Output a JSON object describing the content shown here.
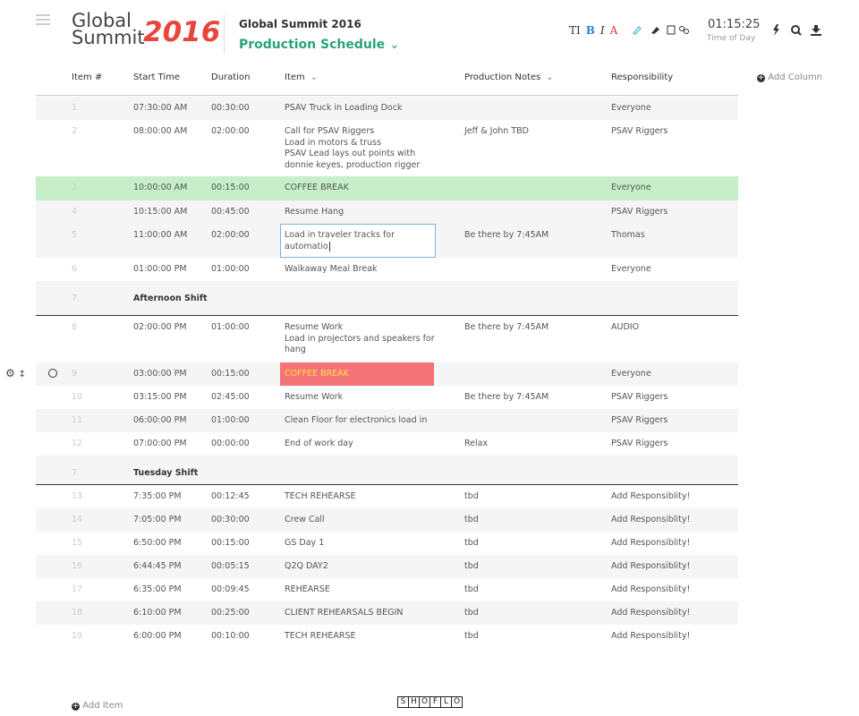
{
  "header": {
    "logo": {
      "line1": "Global",
      "line2": "Summit",
      "year": "2016"
    },
    "title": "Global Summit 2016",
    "subtitle": "Production Schedule",
    "toolbar": [
      "TI",
      "B",
      "I",
      "A"
    ],
    "time": "01:15:25",
    "time_label": "Time of Day"
  },
  "table": {
    "columns": [
      "Item #",
      "Start Time",
      "Duration",
      "Item",
      "Production Notes",
      "Responsibility"
    ],
    "add_column": "Add Column",
    "rows": [
      {
        "number": "1",
        "start": "07:30:00 AM",
        "duration": "00:30:00",
        "item": [
          "PSAV Truck in Loading Dock"
        ],
        "notes": "",
        "responsibility": "Everyone"
      },
      {
        "number": "2",
        "start": "08:00:00 AM",
        "duration": "02:00:00",
        "item": [
          "Call for PSAV Riggers",
          "Load in motors & truss",
          "PSAV Lead lays out points with",
          "donnie keyes, production rigger"
        ],
        "notes": "Jeff & John TBD",
        "responsibility": "PSAV Riggers"
      },
      {
        "number": "3",
        "start": "10:00:00 AM",
        "duration": "00:15:00",
        "item": [
          "COFFEE BREAK"
        ],
        "notes": "",
        "responsibility": "Everyone"
      },
      {
        "number": "4",
        "start": "10:15:00 AM",
        "duration": "00:45:00",
        "item": [
          "Resume Hang"
        ],
        "notes": "",
        "responsibility": "PSAV Riggers"
      },
      {
        "number": "5",
        "start": "11:00:00 AM",
        "duration": "02:00:00",
        "item": [
          "Load in traveler tracks for",
          "automatio"
        ],
        "notes": "Be there by 7:45AM",
        "responsibility": "Thomas"
      },
      {
        "number": "6",
        "start": "01:00:00 PM",
        "duration": "01:00:00",
        "item": [
          "Walkaway Meal Break"
        ],
        "notes": "",
        "responsibility": "Everyone"
      },
      {
        "number": "7",
        "section": "Afternoon Shift"
      },
      {
        "number": "8",
        "start": "02:00:00 PM",
        "duration": "01:00:00",
        "item": [
          "Resume Work",
          "Load in projectors and speakers for",
          "hang"
        ],
        "notes": "Be there by 7:45AM",
        "responsibility": "AUDIO"
      },
      {
        "number": "9",
        "start": "03:00:00 PM",
        "duration": "00:15:00",
        "item": [
          "COFFEE BREAK"
        ],
        "notes": "",
        "responsibility": "Everyone"
      },
      {
        "number": "10",
        "start": "03:15:00 PM",
        "duration": "02:45:00",
        "item": [
          "Resume Work"
        ],
        "notes": "Be there by 7:45AM",
        "responsibility": "PSAV Riggers"
      },
      {
        "number": "11",
        "start": "06:00:00 PM",
        "duration": "01:00:00",
        "item": [
          "Clean Floor for electronics load in"
        ],
        "notes": "",
        "responsibility": "PSAV Riggers"
      },
      {
        "number": "12",
        "start": "07:00:00 PM",
        "duration": "00:00:00",
        "item": [
          "End of work day"
        ],
        "notes": "Relax",
        "responsibility": "PSAV Riggers"
      },
      {
        "number": "7",
        "section": "Tuesday Shift"
      },
      {
        "number": "13",
        "start": "7:35:00 PM",
        "duration": "00:12:45",
        "item": [
          "TECH REHEARSE"
        ],
        "notes": "tbd",
        "responsibility": "Add Responsiblity!"
      },
      {
        "number": "14",
        "start": "7:05:00 PM",
        "duration": "00:30:00",
        "item": [
          "Crew Call"
        ],
        "notes": "tbd",
        "responsibility": "Add Responsiblity!"
      },
      {
        "number": "15",
        "start": "6:50:00 PM",
        "duration": "00:15:00",
        "item": [
          "GS Day 1"
        ],
        "notes": "tbd",
        "responsibility": "Add Responsiblity!"
      },
      {
        "number": "16",
        "start": "6:44:45 PM",
        "duration": "00:05:15",
        "item": [
          "Q2Q DAY2"
        ],
        "notes": "tbd",
        "responsibility": "Add Responsiblity!"
      },
      {
        "number": "17",
        "start": "6:35:00 PM",
        "duration": "00:09:45",
        "item": [
          "REHEARSE"
        ],
        "notes": "tbd",
        "responsibility": "Add Responsiblity!"
      },
      {
        "number": "18",
        "start": "6:10:00 PM",
        "duration": "00:25:00",
        "item": [
          "CLIENT REHEARSALS BEGIN"
        ],
        "notes": "tbd",
        "responsibility": "Add Responsiblity!"
      },
      {
        "number": "19",
        "start": "6:00:00 PM",
        "duration": "00:10:00",
        "item": [
          "TECH REHEARSE"
        ],
        "notes": "tbd",
        "responsibility": "Add Responsiblity!"
      }
    ]
  },
  "footer": {
    "add_item": "Add Item",
    "brand": [
      "S",
      "H",
      "O",
      "F",
      "L",
      "O"
    ]
  }
}
